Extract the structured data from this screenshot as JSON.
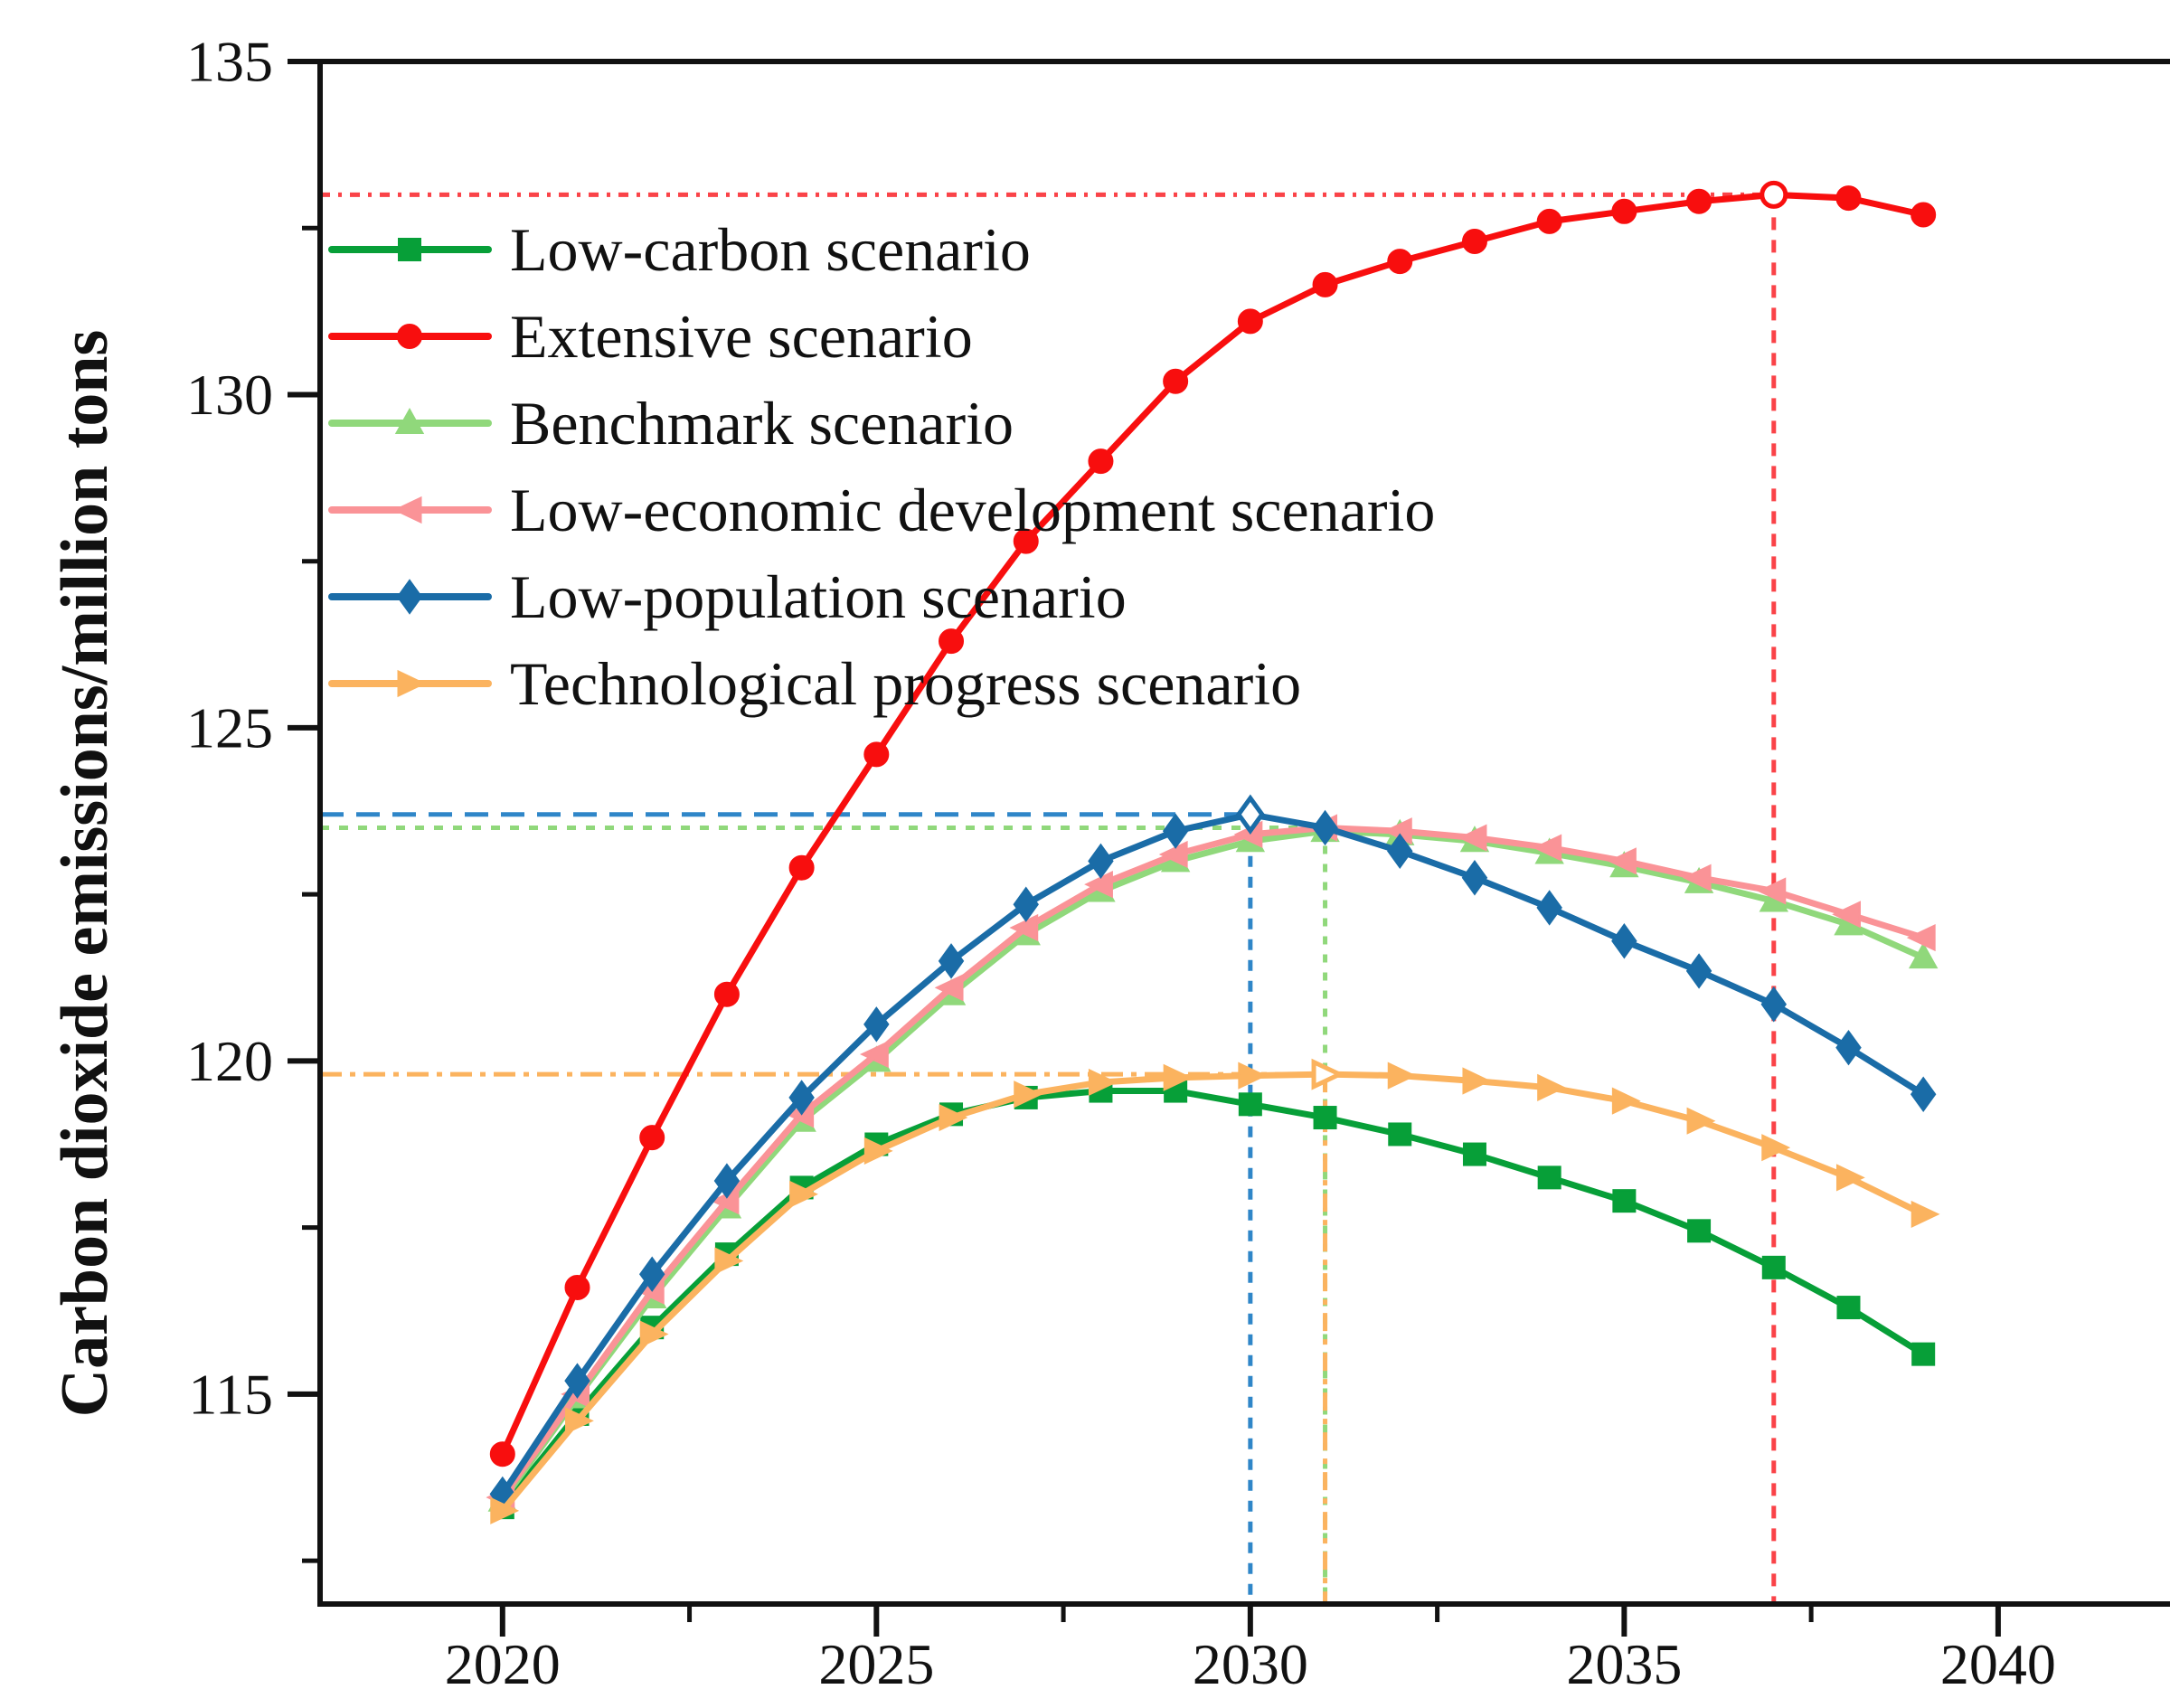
{
  "figure": {
    "kind": "line-chart-figure",
    "background": "#ffffff",
    "axis_color": "#111111"
  },
  "chart_data": {
    "type": "line",
    "title": "",
    "xlabel": "",
    "ylabel": "Carbon dioxide emissions/million tons",
    "x": [
      2020,
      2021,
      2022,
      2023,
      2024,
      2025,
      2026,
      2027,
      2028,
      2029,
      2030,
      2031,
      2032,
      2033,
      2034,
      2035,
      2036,
      2037,
      2038,
      2039
    ],
    "xlim": [
      2017.56,
      2042.48
    ],
    "ylim": [
      111.85,
      135
    ],
    "x_major_ticks": [
      2020,
      2025,
      2030,
      2035,
      2040
    ],
    "x_minor_ticks": [
      2022.5,
      2027.5,
      2032.5,
      2037.5
    ],
    "y_major_ticks": [
      115,
      120,
      125,
      130,
      135
    ],
    "y_minor_ticks": [
      112.5,
      117.5,
      122.5,
      127.5,
      132.5
    ],
    "grid": false,
    "legend_position": "upper-left-inside",
    "series": [
      {
        "name": "Low-carbon scenario",
        "color": "#079F38",
        "marker": "square",
        "values": [
          113.3,
          114.7,
          116.0,
          117.1,
          118.1,
          118.75,
          119.2,
          119.45,
          119.55,
          119.55,
          119.35,
          119.15,
          118.9,
          118.6,
          118.25,
          117.9,
          117.45,
          116.9,
          116.3,
          115.6
        ]
      },
      {
        "name": "Extensive scenario",
        "color": "#F80E0E",
        "marker": "circle",
        "open_marker_year": 2037,
        "values": [
          114.1,
          116.6,
          118.85,
          121.0,
          122.9,
          124.6,
          126.3,
          127.8,
          129.0,
          130.2,
          131.1,
          131.65,
          132.0,
          132.3,
          132.6,
          132.75,
          132.9,
          133.0,
          132.95,
          132.7
        ]
      },
      {
        "name": "Benchmark scenario",
        "color": "#90D87B",
        "marker": "triangle-up",
        "values": [
          113.4,
          114.95,
          116.45,
          117.8,
          119.1,
          120.0,
          121.0,
          121.9,
          122.55,
          123.0,
          123.3,
          123.45,
          123.4,
          123.3,
          123.12,
          122.92,
          122.68,
          122.4,
          122.05,
          121.55
        ]
      },
      {
        "name": "Low-economic development scenario",
        "color": "#FA9397",
        "marker": "triangle-left",
        "values": [
          113.45,
          115.0,
          116.55,
          117.9,
          119.2,
          120.1,
          121.1,
          122.0,
          122.65,
          123.1,
          123.4,
          123.5,
          123.45,
          123.35,
          123.2,
          123.0,
          122.75,
          122.55,
          122.2,
          121.85
        ]
      },
      {
        "name": "Low-population scenario",
        "color": "#1A6CA7",
        "marker": "diamond",
        "open_marker_year": 2030,
        "values": [
          113.5,
          115.2,
          116.8,
          118.2,
          119.45,
          120.55,
          121.5,
          122.35,
          123.0,
          123.45,
          123.7,
          123.5,
          123.15,
          122.75,
          122.3,
          121.8,
          121.35,
          120.85,
          120.2,
          119.5
        ]
      },
      {
        "name": "Technological progress scenario",
        "color": "#FBB35F",
        "marker": "triangle-right",
        "open_marker_year": 2031,
        "values": [
          113.25,
          114.6,
          115.9,
          117.0,
          118.0,
          118.65,
          119.15,
          119.5,
          119.68,
          119.75,
          119.78,
          119.8,
          119.78,
          119.7,
          119.6,
          119.4,
          119.1,
          118.7,
          118.25,
          117.7
        ]
      }
    ],
    "reference_lines": [
      {
        "name": "extensive-peak-marker-lines",
        "color": "#FA4348",
        "h": 133.0,
        "v": 2037,
        "h_dash": "11 9 4 9",
        "v_dash": "14 11"
      },
      {
        "name": "low-population-peak-marker-lines",
        "color": "#2F86C8",
        "h": 123.7,
        "v": 2030,
        "h_dash": "26 14",
        "v_dash": "12 11"
      },
      {
        "name": "benchmark-peak-marker-lines",
        "color": "#90D87B",
        "h": 123.5,
        "v": 2031,
        "h_dash": "10 11",
        "v_dash": "9 11"
      },
      {
        "name": "technological-peak-marker-lines",
        "color": "#FBB35F",
        "h": 119.8,
        "v": 2031,
        "h_dash": "24 9 6 9",
        "v_dash": "20 9 6 9"
      }
    ]
  }
}
